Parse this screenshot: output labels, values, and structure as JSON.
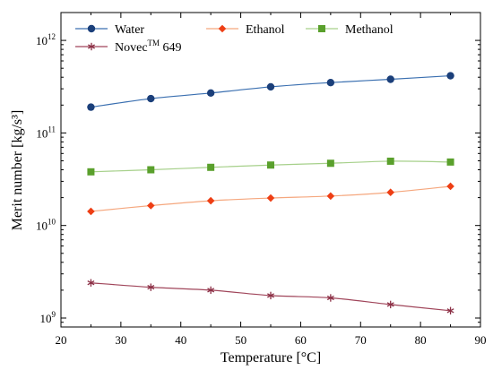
{
  "chart_data": {
    "type": "line",
    "title": "",
    "xlabel": "Temperature [°C]",
    "ylabel": "Merit number [kg/s³]",
    "yscale": "log",
    "xlim": [
      20,
      90
    ],
    "ylim": [
      800000000,
      2000000000000
    ],
    "x_ticks": [
      20,
      30,
      40,
      50,
      60,
      70,
      80,
      90
    ],
    "y_ticks": [
      {
        "value": 1000000000,
        "base": "10",
        "exp": "9"
      },
      {
        "value": 10000000000,
        "base": "10",
        "exp": "10"
      },
      {
        "value": 100000000000,
        "base": "10",
        "exp": "11"
      },
      {
        "value": 1000000000000,
        "base": "10",
        "exp": "12"
      }
    ],
    "x": [
      25,
      35,
      45,
      55,
      65,
      75,
      85
    ],
    "series": [
      {
        "name": "Water",
        "color": "#3a6fb0",
        "marker_color": "#1b3f7a",
        "marker": "circle",
        "values": [
          190000000000,
          235000000000,
          270000000000,
          315000000000,
          350000000000,
          380000000000,
          415000000000
        ]
      },
      {
        "name": "Ethanol",
        "color": "#f5a77e",
        "marker_color": "#ee3e14",
        "marker": "diamond",
        "values": [
          14200000000,
          16400000000,
          18500000000,
          19800000000,
          20800000000,
          22800000000,
          26500000000
        ]
      },
      {
        "name": "Methanol",
        "color": "#a6d08a",
        "marker_color": "#5aa02c",
        "marker": "square",
        "values": [
          38000000000,
          40000000000,
          42500000000,
          45000000000,
          47000000000,
          49500000000,
          48500000000
        ]
      },
      {
        "name": "Novec",
        "name_sup": "TM",
        "name_suffix": " 649",
        "color": "#a0455a",
        "marker_color": "#8b2f45",
        "marker": "star",
        "values": [
          2400000000,
          2150000000,
          2000000000,
          1750000000,
          1650000000,
          1400000000,
          1200000000
        ]
      }
    ],
    "legend": {
      "placement": "top-left",
      "columns": 3
    },
    "grid": false
  }
}
